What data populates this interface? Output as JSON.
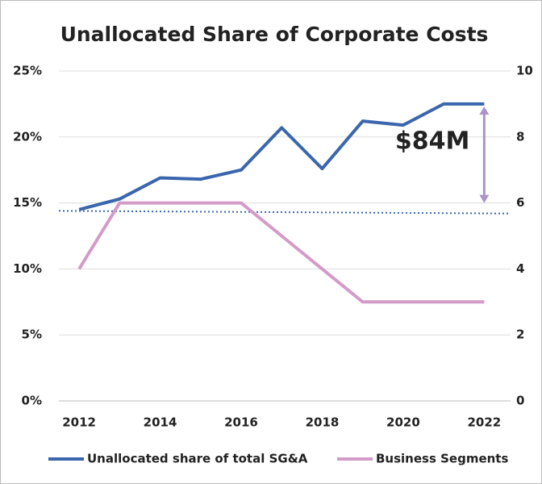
{
  "chart_data": {
    "type": "line",
    "title": "Unallocated Share of Corporate Costs",
    "x": [
      2012,
      2013,
      2014,
      2015,
      2016,
      2017,
      2018,
      2019,
      2020,
      2021,
      2022
    ],
    "series": [
      {
        "name": "Unallocated share of total SG&A",
        "color": "#3a66ad",
        "values": [
          14.5,
          15.3,
          16.9,
          16.8,
          17.5,
          20.7,
          17.6,
          21.2,
          20.9,
          22.5,
          22.5
        ]
      },
      {
        "name": "Business Segments",
        "color": "#d49ac8",
        "axis": "y2",
        "values": [
          4,
          6,
          6,
          6,
          6,
          5,
          4,
          3,
          3,
          3,
          3
        ]
      }
    ],
    "reference_line": {
      "color": "#3a66ad",
      "y": [
        14.4,
        14.2
      ]
    },
    "annotations": [
      {
        "text": "$84M",
        "color": "#a993c9",
        "x": 2022,
        "y": [
          22.3,
          15.0
        ]
      }
    ],
    "xlim": [
      2011.5,
      2022.65
    ],
    "xticks": [
      2012,
      2014,
      2016,
      2018,
      2020,
      2022
    ],
    "ylim": [
      0,
      25
    ],
    "yticks": [
      {
        "value": 0,
        "label": "0%"
      },
      {
        "value": 5,
        "label": "5%"
      },
      {
        "value": 10,
        "label": "10%"
      },
      {
        "value": 15,
        "label": "15%"
      },
      {
        "value": 20,
        "label": "20%"
      },
      {
        "value": 25,
        "label": "25%"
      }
    ],
    "y2lim": [
      0,
      10
    ],
    "y2ticks": [
      0,
      2,
      4,
      6,
      8,
      10
    ],
    "grid": true,
    "legend": "bottom"
  }
}
